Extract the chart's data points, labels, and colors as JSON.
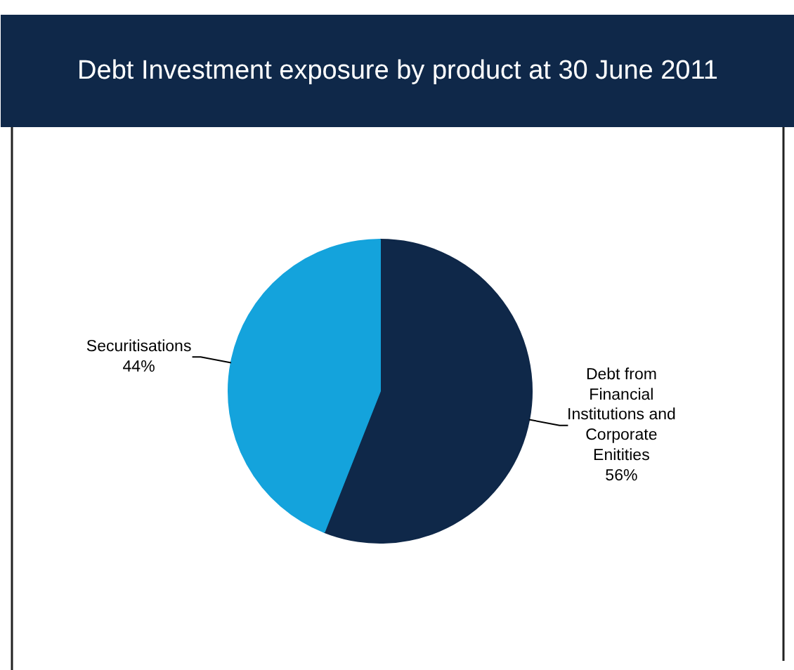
{
  "chart_data": {
    "type": "pie",
    "title": "Debt Investment exposure by product at 30 June 2011",
    "categories": [
      "Debt from\nFinancial\nInstitutions and\nCorporate\nEnitities",
      "Securitisations"
    ],
    "values": [
      56,
      44
    ],
    "colors": [
      "#0f2849",
      "#14a3dc"
    ],
    "value_labels": [
      "56%",
      "44%"
    ]
  }
}
